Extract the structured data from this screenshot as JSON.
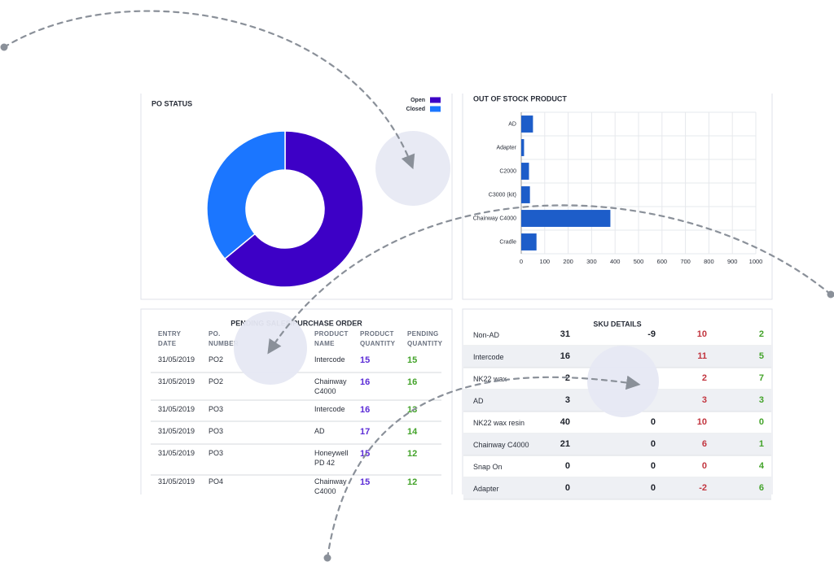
{
  "po_status": {
    "type": "pie",
    "title": "PO STATUS",
    "categories": [
      "Open",
      "Closed"
    ],
    "values": [
      64,
      36
    ],
    "colors": [
      "#3d00c6",
      "#1b76ff"
    ]
  },
  "out_of_stock": {
    "type": "bar",
    "orientation": "horizontal",
    "title": "OUT OF STOCK PRODUCT",
    "categories": [
      "AD",
      "Adapter",
      "C2000",
      "C3000 (kit)",
      "Chainway C4000",
      "Cradle"
    ],
    "values": [
      50,
      12,
      33,
      37,
      380,
      65
    ],
    "color": "#1d5dc9",
    "xlim": [
      0,
      1000
    ],
    "xticks": [
      0,
      100,
      200,
      300,
      400,
      500,
      600,
      700,
      800,
      900,
      1000
    ],
    "grid": true
  },
  "pending_orders": {
    "title": "PENDING SALES/PURCHASE ORDER",
    "headers": [
      "ENTRY DATE",
      "PO. NUMBER",
      "PRODUCT NAME",
      "PRODUCT QUANTITY",
      "PENDING QUANTITY"
    ],
    "rows": [
      [
        "31/05/2019",
        "PO2",
        "Intercode",
        15,
        15
      ],
      [
        "31/05/2019",
        "PO2",
        "Chainway C4000",
        16,
        16
      ],
      [
        "31/05/2019",
        "PO3",
        "Intercode",
        16,
        13
      ],
      [
        "31/05/2019",
        "PO3",
        "AD",
        17,
        14
      ],
      [
        "31/05/2019",
        "PO3",
        "Honeywell PD 42",
        15,
        12
      ],
      [
        "31/05/2019",
        "PO4",
        "Chainway C4000",
        15,
        12
      ]
    ]
  },
  "sku_details": {
    "title": "SKU DETAILS",
    "rows": [
      [
        "Non-AD",
        31,
        -9,
        10,
        2
      ],
      [
        "Intercode",
        16,
        null,
        11,
        5
      ],
      [
        "NK22 wax",
        2,
        null,
        2,
        7
      ],
      [
        "AD",
        3,
        null,
        3,
        3
      ],
      [
        "NK22 wax resin",
        40,
        0,
        10,
        0
      ],
      [
        "Chainway C4000",
        21,
        0,
        6,
        1
      ],
      [
        "Snap On",
        0,
        0,
        0,
        4
      ],
      [
        "Adapter",
        0,
        0,
        -2,
        6
      ]
    ]
  }
}
